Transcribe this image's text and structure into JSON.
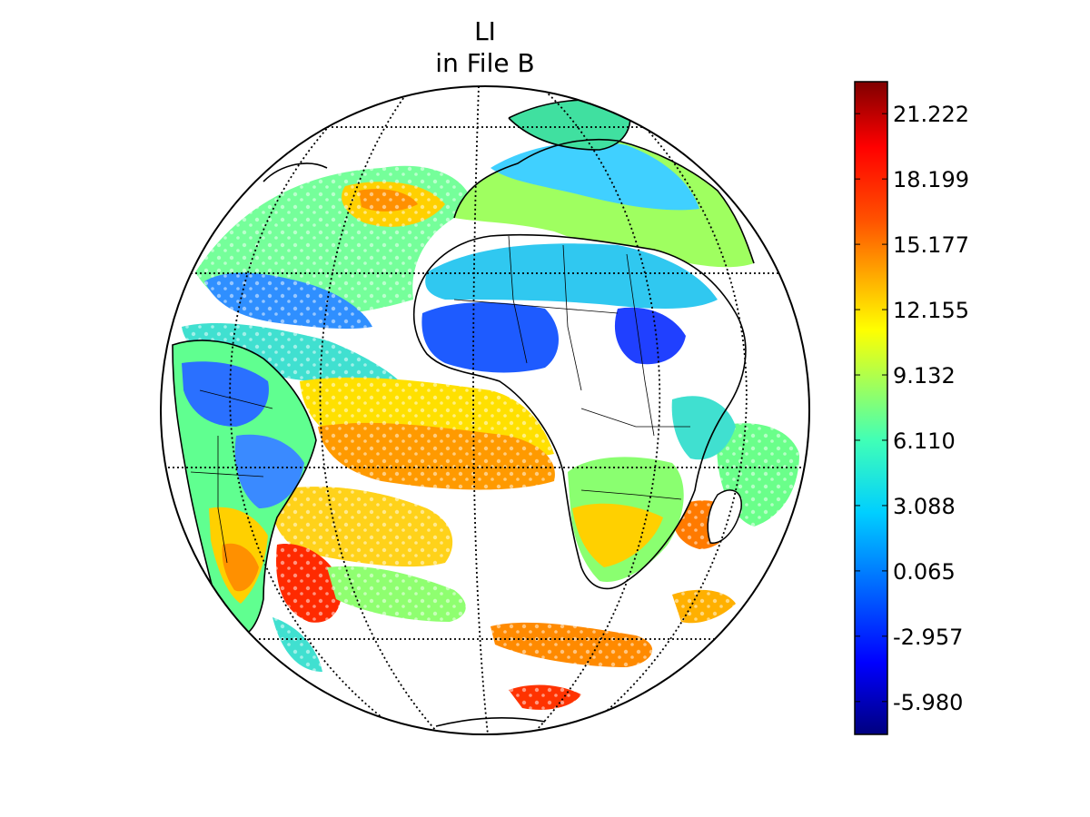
{
  "figure": {
    "title_line1": "LI",
    "title_line2": "in File B"
  },
  "map": {
    "projection": "orthographic",
    "graticule_style": "dotted"
  },
  "colorbar": {
    "colormap": "jet",
    "orientation": "vertical",
    "range": [
      -7.5,
      22.7
    ],
    "ticks": [
      {
        "value": 21.222,
        "label": "21.222"
      },
      {
        "value": 18.199,
        "label": "18.199"
      },
      {
        "value": 15.177,
        "label": "15.177"
      },
      {
        "value": 12.155,
        "label": "12.155"
      },
      {
        "value": 9.132,
        "label": "9.132"
      },
      {
        "value": 6.11,
        "label": "6.110"
      },
      {
        "value": 3.088,
        "label": "3.088"
      },
      {
        "value": 0.065,
        "label": "0.065"
      },
      {
        "value": -2.957,
        "label": "-2.957"
      },
      {
        "value": -5.98,
        "label": "-5.980"
      }
    ],
    "colors": [
      "#00007f",
      "#0000ff",
      "#007fff",
      "#00ffff",
      "#7fff7f",
      "#ffff00",
      "#ff7f00",
      "#ff0000",
      "#7f0000"
    ]
  }
}
